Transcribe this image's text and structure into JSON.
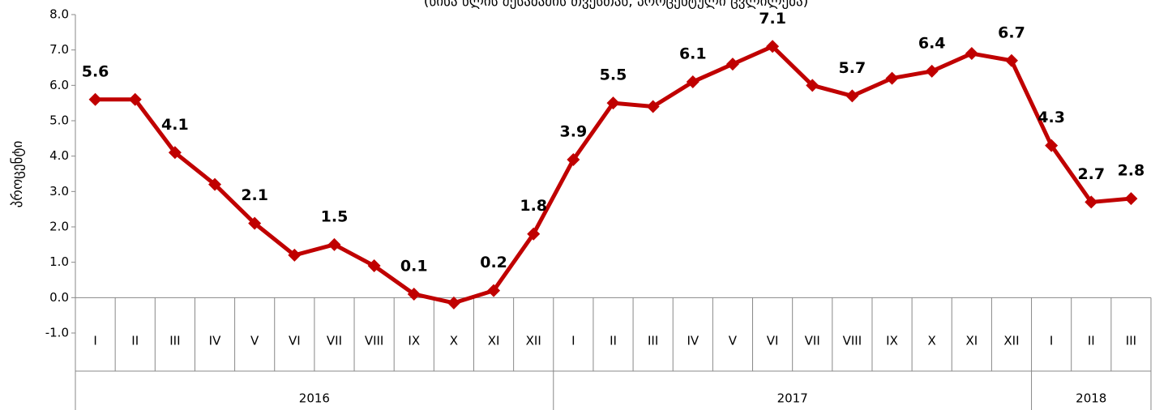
{
  "chart_data": {
    "type": "line",
    "title": "(წინა წლის შესაბამის თვესთან, პროცენტული ცვლილება)",
    "y_label": "პროცენტი",
    "categories": [
      "I",
      "II",
      "III",
      "IV",
      "V",
      "VI",
      "VII",
      "VIII",
      "IX",
      "X",
      "XI",
      "XII",
      "I",
      "II",
      "III",
      "IV",
      "V",
      "VI",
      "VII",
      "VIII",
      "IX",
      "X",
      "XI",
      "XII",
      "I",
      "II",
      "III"
    ],
    "groups": [
      {
        "label": "2016",
        "count": 12
      },
      {
        "label": "2017",
        "count": 12
      },
      {
        "label": "2018",
        "count": 3
      }
    ],
    "series": [
      {
        "name": "პროცენტი",
        "color": "#c00000",
        "values": [
          5.6,
          5.6,
          4.1,
          3.2,
          2.1,
          1.2,
          1.5,
          0.9,
          0.1,
          -0.15,
          0.2,
          1.8,
          3.9,
          5.5,
          5.4,
          6.1,
          6.6,
          7.1,
          6.0,
          5.7,
          6.2,
          6.4,
          6.9,
          6.7,
          4.3,
          2.7,
          2.8
        ],
        "value_labels": [
          "5.6",
          null,
          "4.1",
          null,
          "2.1",
          null,
          "1.5",
          null,
          "0.1",
          null,
          "0.2",
          "1.8",
          "3.9",
          "5.5",
          null,
          "6.1",
          null,
          "7.1",
          null,
          "5.7",
          null,
          "6.4",
          null,
          "6.7",
          "4.3",
          "2.7",
          "2.8"
        ]
      }
    ],
    "ylim": [
      -1,
      8
    ],
    "yticks": [
      {
        "value": -1,
        "label": "-1.0"
      },
      {
        "value": 0,
        "label": "0.0"
      },
      {
        "value": 1,
        "label": "1.0"
      },
      {
        "value": 2,
        "label": "2.0"
      },
      {
        "value": 3,
        "label": "3.0"
      },
      {
        "value": 4,
        "label": "4.0"
      },
      {
        "value": 5,
        "label": "5.0"
      },
      {
        "value": 6,
        "label": "6.0"
      },
      {
        "value": 7,
        "label": "7.0"
      },
      {
        "value": 8,
        "label": "8.0"
      }
    ]
  }
}
